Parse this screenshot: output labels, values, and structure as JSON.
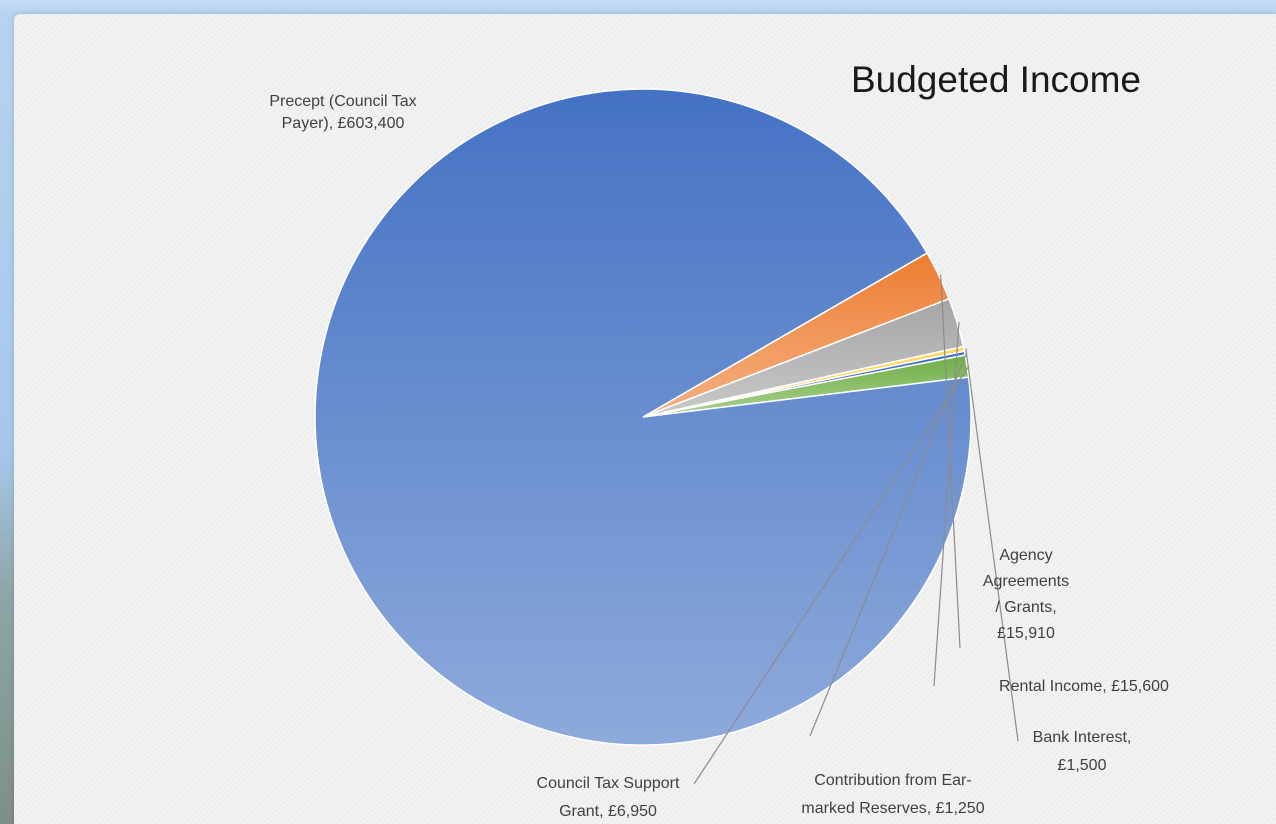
{
  "chart_data": {
    "type": "pie",
    "title": "Budgeted Income",
    "slices": [
      {
        "name": "Precept (Council Tax Payer)",
        "value": 603400,
        "value_label": "£603,400",
        "label_lines": [
          "Precept (Council Tax",
          "Payer),  £603,400"
        ],
        "color": "#5b86cf"
      },
      {
        "name": "Agency Agreements / Grants",
        "value": 15910,
        "value_label": "£15,910",
        "label_lines": [
          "Agency",
          "Agreements",
          "/ Grants,",
          "£15,910"
        ],
        "color": "#ed7d31"
      },
      {
        "name": "Rental Income",
        "value": 15600,
        "value_label": "£15,600",
        "label_lines": [
          "Rental Income,  £15,600"
        ],
        "color": "#a5a5a5"
      },
      {
        "name": "Bank Interest",
        "value": 1500,
        "value_label": "£1,500",
        "label_lines": [
          "Bank Interest,",
          "£1,500"
        ],
        "color": "#ffc000"
      },
      {
        "name": "Contribution from Ear-marked Reserves",
        "value": 1250,
        "value_label": "£1,250",
        "label_lines": [
          "Contribution from Ear-",
          "marked Reserves,  £1,250"
        ],
        "color": "#4472c4"
      },
      {
        "name": "Council Tax Support Grant",
        "value": 6950,
        "value_label": "£6,950",
        "label_lines": [
          "Council Tax Support",
          "Grant,  £6,950"
        ],
        "color": "#70ad47"
      }
    ],
    "legend": "none",
    "data_labels": "outside with leader lines"
  }
}
